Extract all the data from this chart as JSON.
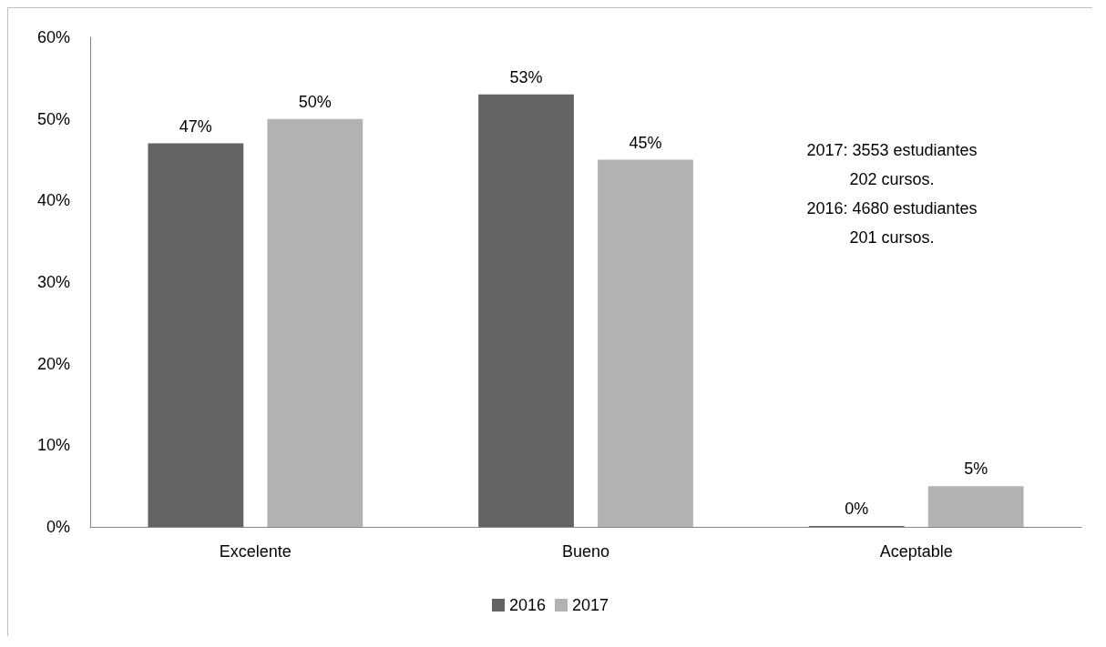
{
  "chart_data": {
    "type": "bar",
    "categories": [
      "Excelente",
      "Bueno",
      "Aceptable"
    ],
    "series": [
      {
        "name": "2016",
        "color": "#636363",
        "values": [
          47,
          53,
          0
        ],
        "value_labels": [
          "47%",
          "53%",
          "0%"
        ]
      },
      {
        "name": "2017",
        "color": "#b2b2b2",
        "values": [
          50,
          45,
          5
        ],
        "value_labels": [
          "50%",
          "45%",
          "5%"
        ]
      }
    ],
    "ylim": [
      0,
      60
    ],
    "yticks": [
      {
        "value": 0,
        "label": "0%"
      },
      {
        "value": 10,
        "label": "10%"
      },
      {
        "value": 20,
        "label": "20%"
      },
      {
        "value": 30,
        "label": "30%"
      },
      {
        "value": 40,
        "label": "40%"
      },
      {
        "value": 50,
        "label": "50%"
      },
      {
        "value": 60,
        "label": "60%"
      }
    ],
    "annotations": [
      "2017: 3553 estudiantes\n202 cursos.\n2016: 4680 estudiantes\n201 cursos."
    ],
    "grid": false,
    "legend": "bottom"
  }
}
